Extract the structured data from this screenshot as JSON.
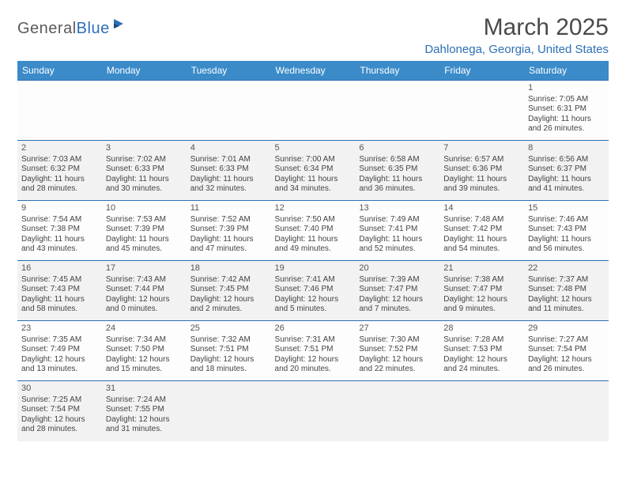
{
  "logo": {
    "text1": "General",
    "text2": "Blue"
  },
  "title": "March 2025",
  "location": "Dahlonega, Georgia, United States",
  "colors": {
    "header_bg": "#3b8bc9",
    "accent": "#2d6fb5",
    "row_alt": "#f2f2f2",
    "text": "#444444"
  },
  "dayHeaders": [
    "Sunday",
    "Monday",
    "Tuesday",
    "Wednesday",
    "Thursday",
    "Friday",
    "Saturday"
  ],
  "weeks": [
    [
      null,
      null,
      null,
      null,
      null,
      null,
      {
        "n": "1",
        "sr": "Sunrise: 7:05 AM",
        "ss": "Sunset: 6:31 PM",
        "dl1": "Daylight: 11 hours",
        "dl2": "and 26 minutes."
      }
    ],
    [
      {
        "n": "2",
        "sr": "Sunrise: 7:03 AM",
        "ss": "Sunset: 6:32 PM",
        "dl1": "Daylight: 11 hours",
        "dl2": "and 28 minutes."
      },
      {
        "n": "3",
        "sr": "Sunrise: 7:02 AM",
        "ss": "Sunset: 6:33 PM",
        "dl1": "Daylight: 11 hours",
        "dl2": "and 30 minutes."
      },
      {
        "n": "4",
        "sr": "Sunrise: 7:01 AM",
        "ss": "Sunset: 6:33 PM",
        "dl1": "Daylight: 11 hours",
        "dl2": "and 32 minutes."
      },
      {
        "n": "5",
        "sr": "Sunrise: 7:00 AM",
        "ss": "Sunset: 6:34 PM",
        "dl1": "Daylight: 11 hours",
        "dl2": "and 34 minutes."
      },
      {
        "n": "6",
        "sr": "Sunrise: 6:58 AM",
        "ss": "Sunset: 6:35 PM",
        "dl1": "Daylight: 11 hours",
        "dl2": "and 36 minutes."
      },
      {
        "n": "7",
        "sr": "Sunrise: 6:57 AM",
        "ss": "Sunset: 6:36 PM",
        "dl1": "Daylight: 11 hours",
        "dl2": "and 39 minutes."
      },
      {
        "n": "8",
        "sr": "Sunrise: 6:56 AM",
        "ss": "Sunset: 6:37 PM",
        "dl1": "Daylight: 11 hours",
        "dl2": "and 41 minutes."
      }
    ],
    [
      {
        "n": "9",
        "sr": "Sunrise: 7:54 AM",
        "ss": "Sunset: 7:38 PM",
        "dl1": "Daylight: 11 hours",
        "dl2": "and 43 minutes."
      },
      {
        "n": "10",
        "sr": "Sunrise: 7:53 AM",
        "ss": "Sunset: 7:39 PM",
        "dl1": "Daylight: 11 hours",
        "dl2": "and 45 minutes."
      },
      {
        "n": "11",
        "sr": "Sunrise: 7:52 AM",
        "ss": "Sunset: 7:39 PM",
        "dl1": "Daylight: 11 hours",
        "dl2": "and 47 minutes."
      },
      {
        "n": "12",
        "sr": "Sunrise: 7:50 AM",
        "ss": "Sunset: 7:40 PM",
        "dl1": "Daylight: 11 hours",
        "dl2": "and 49 minutes."
      },
      {
        "n": "13",
        "sr": "Sunrise: 7:49 AM",
        "ss": "Sunset: 7:41 PM",
        "dl1": "Daylight: 11 hours",
        "dl2": "and 52 minutes."
      },
      {
        "n": "14",
        "sr": "Sunrise: 7:48 AM",
        "ss": "Sunset: 7:42 PM",
        "dl1": "Daylight: 11 hours",
        "dl2": "and 54 minutes."
      },
      {
        "n": "15",
        "sr": "Sunrise: 7:46 AM",
        "ss": "Sunset: 7:43 PM",
        "dl1": "Daylight: 11 hours",
        "dl2": "and 56 minutes."
      }
    ],
    [
      {
        "n": "16",
        "sr": "Sunrise: 7:45 AM",
        "ss": "Sunset: 7:43 PM",
        "dl1": "Daylight: 11 hours",
        "dl2": "and 58 minutes."
      },
      {
        "n": "17",
        "sr": "Sunrise: 7:43 AM",
        "ss": "Sunset: 7:44 PM",
        "dl1": "Daylight: 12 hours",
        "dl2": "and 0 minutes."
      },
      {
        "n": "18",
        "sr": "Sunrise: 7:42 AM",
        "ss": "Sunset: 7:45 PM",
        "dl1": "Daylight: 12 hours",
        "dl2": "and 2 minutes."
      },
      {
        "n": "19",
        "sr": "Sunrise: 7:41 AM",
        "ss": "Sunset: 7:46 PM",
        "dl1": "Daylight: 12 hours",
        "dl2": "and 5 minutes."
      },
      {
        "n": "20",
        "sr": "Sunrise: 7:39 AM",
        "ss": "Sunset: 7:47 PM",
        "dl1": "Daylight: 12 hours",
        "dl2": "and 7 minutes."
      },
      {
        "n": "21",
        "sr": "Sunrise: 7:38 AM",
        "ss": "Sunset: 7:47 PM",
        "dl1": "Daylight: 12 hours",
        "dl2": "and 9 minutes."
      },
      {
        "n": "22",
        "sr": "Sunrise: 7:37 AM",
        "ss": "Sunset: 7:48 PM",
        "dl1": "Daylight: 12 hours",
        "dl2": "and 11 minutes."
      }
    ],
    [
      {
        "n": "23",
        "sr": "Sunrise: 7:35 AM",
        "ss": "Sunset: 7:49 PM",
        "dl1": "Daylight: 12 hours",
        "dl2": "and 13 minutes."
      },
      {
        "n": "24",
        "sr": "Sunrise: 7:34 AM",
        "ss": "Sunset: 7:50 PM",
        "dl1": "Daylight: 12 hours",
        "dl2": "and 15 minutes."
      },
      {
        "n": "25",
        "sr": "Sunrise: 7:32 AM",
        "ss": "Sunset: 7:51 PM",
        "dl1": "Daylight: 12 hours",
        "dl2": "and 18 minutes."
      },
      {
        "n": "26",
        "sr": "Sunrise: 7:31 AM",
        "ss": "Sunset: 7:51 PM",
        "dl1": "Daylight: 12 hours",
        "dl2": "and 20 minutes."
      },
      {
        "n": "27",
        "sr": "Sunrise: 7:30 AM",
        "ss": "Sunset: 7:52 PM",
        "dl1": "Daylight: 12 hours",
        "dl2": "and 22 minutes."
      },
      {
        "n": "28",
        "sr": "Sunrise: 7:28 AM",
        "ss": "Sunset: 7:53 PM",
        "dl1": "Daylight: 12 hours",
        "dl2": "and 24 minutes."
      },
      {
        "n": "29",
        "sr": "Sunrise: 7:27 AM",
        "ss": "Sunset: 7:54 PM",
        "dl1": "Daylight: 12 hours",
        "dl2": "and 26 minutes."
      }
    ],
    [
      {
        "n": "30",
        "sr": "Sunrise: 7:25 AM",
        "ss": "Sunset: 7:54 PM",
        "dl1": "Daylight: 12 hours",
        "dl2": "and 28 minutes."
      },
      {
        "n": "31",
        "sr": "Sunrise: 7:24 AM",
        "ss": "Sunset: 7:55 PM",
        "dl1": "Daylight: 12 hours",
        "dl2": "and 31 minutes."
      },
      null,
      null,
      null,
      null,
      null
    ]
  ]
}
